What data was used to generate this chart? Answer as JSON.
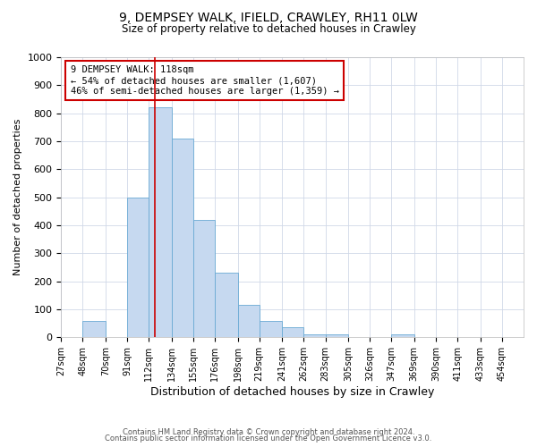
{
  "title": "9, DEMPSEY WALK, IFIELD, CRAWLEY, RH11 0LW",
  "subtitle": "Size of property relative to detached houses in Crawley",
  "xlabel": "Distribution of detached houses by size in Crawley",
  "ylabel": "Number of detached properties",
  "bin_labels": [
    "27sqm",
    "48sqm",
    "70sqm",
    "91sqm",
    "112sqm",
    "134sqm",
    "155sqm",
    "176sqm",
    "198sqm",
    "219sqm",
    "241sqm",
    "262sqm",
    "283sqm",
    "305sqm",
    "326sqm",
    "347sqm",
    "369sqm",
    "390sqm",
    "411sqm",
    "433sqm",
    "454sqm"
  ],
  "bin_edges": [
    27,
    48,
    70,
    91,
    112,
    134,
    155,
    176,
    198,
    219,
    241,
    262,
    283,
    305,
    326,
    347,
    369,
    390,
    411,
    433,
    454
  ],
  "bar_heights": [
    0,
    57,
    0,
    500,
    820,
    710,
    420,
    232,
    117,
    57,
    35,
    12,
    12,
    0,
    0,
    12,
    0,
    0,
    0,
    0,
    0
  ],
  "bar_color": "#c6d9f0",
  "bar_edge_color": "#6aaad4",
  "vline_x": 118,
  "vline_color": "#cc0000",
  "annotation_line1": "9 DEMPSEY WALK: 118sqm",
  "annotation_line2": "← 54% of detached houses are smaller (1,607)",
  "annotation_line3": "46% of semi-detached houses are larger (1,359) →",
  "annotation_box_color": "#ffffff",
  "annotation_box_edge_color": "#cc0000",
  "ylim": [
    0,
    1000
  ],
  "yticks": [
    0,
    100,
    200,
    300,
    400,
    500,
    600,
    700,
    800,
    900,
    1000
  ],
  "grid_color": "#d0d8e8",
  "background_color": "#ffffff",
  "footer_line1": "Contains HM Land Registry data © Crown copyright and database right 2024.",
  "footer_line2": "Contains public sector information licensed under the Open Government Licence v3.0."
}
